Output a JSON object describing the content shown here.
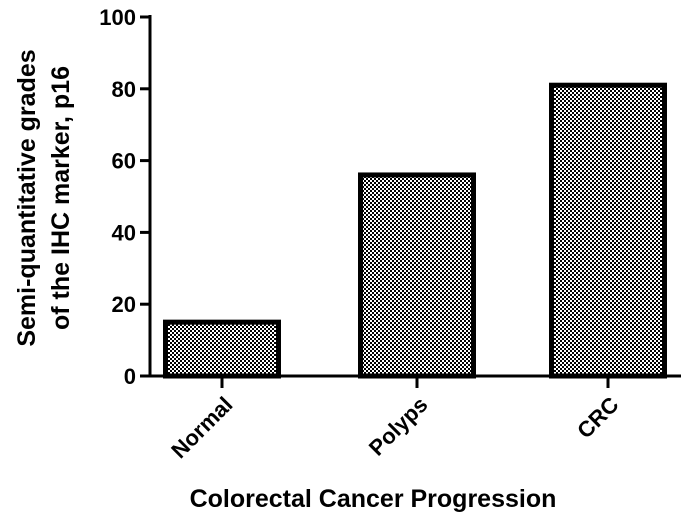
{
  "chart_data": {
    "type": "bar",
    "categories": [
      "Normal",
      "Polyps",
      "CRC"
    ],
    "values": [
      15,
      56,
      81
    ],
    "title": "",
    "xlabel": "Colorectal Cancer Progression",
    "ylabel_lines": [
      "Semi-quantitative grades",
      "of the IHC marker, p16"
    ],
    "ylim": [
      0,
      100
    ],
    "yticks": [
      "0",
      "20",
      "40",
      "60",
      "80",
      "100"
    ],
    "grid": false,
    "bar_pattern": "checkered",
    "colors": {
      "bar_fill": "#ffffff",
      "pattern_ink": "#000000",
      "axis": "#000000"
    }
  }
}
